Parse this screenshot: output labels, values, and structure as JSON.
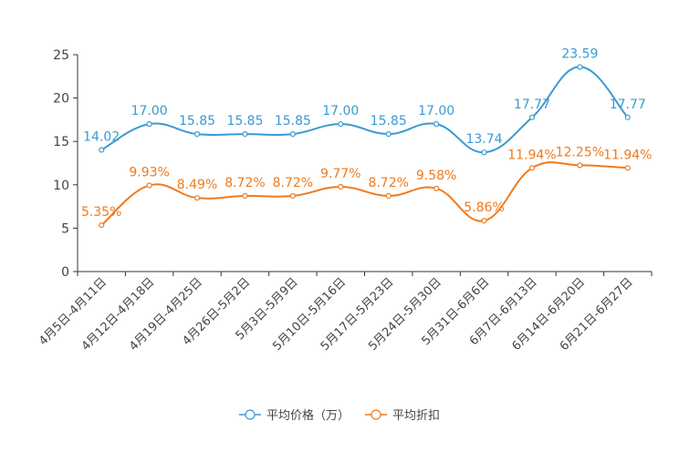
{
  "chart_data": {
    "type": "line",
    "categories": [
      "4月5日-4月11日",
      "4月12日-4月18日",
      "4月19日-4月25日",
      "4月26日-5月2日",
      "5月3日-5月9日",
      "5月10日-5月16日",
      "5月17日-5月23日",
      "5月24日-5月30日",
      "5月31日-6月6日",
      "6月7日-6月13日",
      "6月14日-6月20日",
      "6月21日-6月27日"
    ],
    "ylim": [
      0,
      25
    ],
    "yticks": [
      0,
      5,
      10,
      15,
      20,
      25
    ],
    "grid": false,
    "legend_position": "bottom",
    "series": [
      {
        "name": "平均价格（万）",
        "color": "#3a9ad1",
        "values": [
          14.02,
          17.0,
          15.85,
          15.85,
          15.85,
          17.0,
          15.85,
          17.0,
          13.74,
          17.77,
          23.59,
          17.77
        ],
        "labels": [
          "14.02",
          "17.00",
          "15.85",
          "15.85",
          "15.85",
          "17.00",
          "15.85",
          "17.00",
          "13.74",
          "17.77",
          "23.59",
          "17.77"
        ]
      },
      {
        "name": "平均折扣",
        "color": "#f07a1c",
        "values": [
          5.35,
          9.93,
          8.49,
          8.72,
          8.72,
          9.77,
          8.72,
          9.58,
          5.86,
          11.94,
          12.25,
          11.94
        ],
        "labels": [
          "5.35%",
          "9.93%",
          "8.49%",
          "8.72%",
          "8.72%",
          "9.77%",
          "8.72%",
          "9.58%",
          "5.86%",
          "11.94%",
          "12.25%",
          "11.94%"
        ]
      }
    ]
  }
}
